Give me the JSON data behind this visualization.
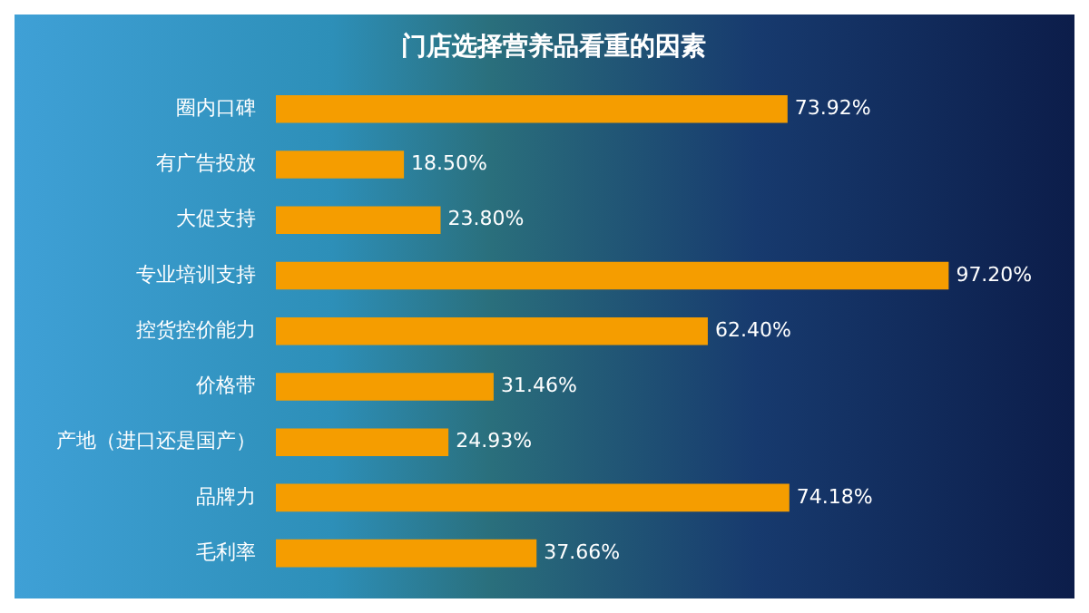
{
  "chart_data": {
    "type": "bar",
    "orientation": "horizontal",
    "title": "门店选择营养品看重的因素",
    "categories": [
      "圈内口碑",
      "有广告投放",
      "大促支持",
      "专业培训支持",
      "控货控价能力",
      "价格带",
      "产地（进口还是国产）",
      "品牌力",
      "毛利率"
    ],
    "values": [
      73.92,
      18.5,
      23.8,
      97.2,
      62.4,
      31.46,
      24.93,
      74.18,
      37.66
    ],
    "value_labels": [
      "73.92%",
      "18.50%",
      "23.80%",
      "97.20%",
      "62.40%",
      "31.46%",
      "24.93%",
      "74.18%",
      "37.66%"
    ],
    "color": "#f59d00",
    "legend": false,
    "tick_labels": "y"
  }
}
